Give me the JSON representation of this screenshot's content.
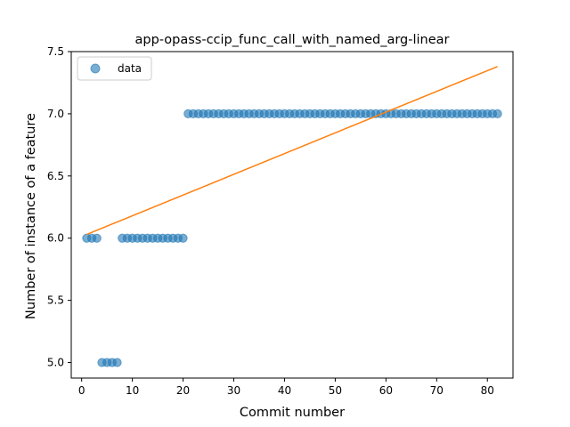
{
  "chart_data": {
    "type": "scatter",
    "title": "app-opass-ccip_func_call_with_named_arg-linear",
    "xlabel": "Commit number",
    "ylabel": "Number of instance of a feature",
    "xlim": [
      -2.05,
      85.05
    ],
    "ylim": [
      4.875,
      7.5
    ],
    "xticks": [
      0,
      10,
      20,
      30,
      40,
      50,
      60,
      70,
      80
    ],
    "xtick_labels": [
      "0",
      "10",
      "20",
      "30",
      "40",
      "50",
      "60",
      "70",
      "80"
    ],
    "yticks": [
      5.0,
      5.5,
      6.0,
      6.5,
      7.0,
      7.5
    ],
    "ytick_labels": [
      "5.0",
      "5.5",
      "6.0",
      "6.5",
      "7.0",
      "7.5"
    ],
    "grid": false,
    "legend": {
      "placement": "top-left",
      "entries": [
        "data"
      ]
    },
    "colors": {
      "data": "#1f77b4",
      "fit": "#ff7f0e"
    },
    "series": [
      {
        "name": "data",
        "kind": "scatter",
        "x": [
          1,
          2,
          3,
          4,
          5,
          6,
          7,
          8,
          9,
          10,
          11,
          12,
          13,
          14,
          15,
          16,
          17,
          18,
          19,
          20,
          21,
          22,
          23,
          24,
          25,
          26,
          27,
          28,
          29,
          30,
          31,
          32,
          33,
          34,
          35,
          36,
          37,
          38,
          39,
          40,
          41,
          42,
          43,
          44,
          45,
          46,
          47,
          48,
          49,
          50,
          51,
          52,
          53,
          54,
          55,
          56,
          57,
          58,
          59,
          60,
          61,
          62,
          63,
          64,
          65,
          66,
          67,
          68,
          69,
          70,
          71,
          72,
          73,
          74,
          75,
          76,
          77,
          78,
          79,
          80,
          81,
          82
        ],
        "y": [
          6,
          6,
          6,
          5,
          5,
          5,
          5,
          6,
          6,
          6,
          6,
          6,
          6,
          6,
          6,
          6,
          6,
          6,
          6,
          6,
          7,
          7,
          7,
          7,
          7,
          7,
          7,
          7,
          7,
          7,
          7,
          7,
          7,
          7,
          7,
          7,
          7,
          7,
          7,
          7,
          7,
          7,
          7,
          7,
          7,
          7,
          7,
          7,
          7,
          7,
          7,
          7,
          7,
          7,
          7,
          7,
          7,
          7,
          7,
          7,
          7,
          7,
          7,
          7,
          7,
          7,
          7,
          7,
          7,
          7,
          7,
          7,
          7,
          7,
          7,
          7,
          7,
          7,
          7,
          7,
          7,
          7
        ]
      },
      {
        "kind": "line",
        "x": [
          1,
          82
        ],
        "y": [
          6.03,
          7.38
        ]
      }
    ]
  }
}
